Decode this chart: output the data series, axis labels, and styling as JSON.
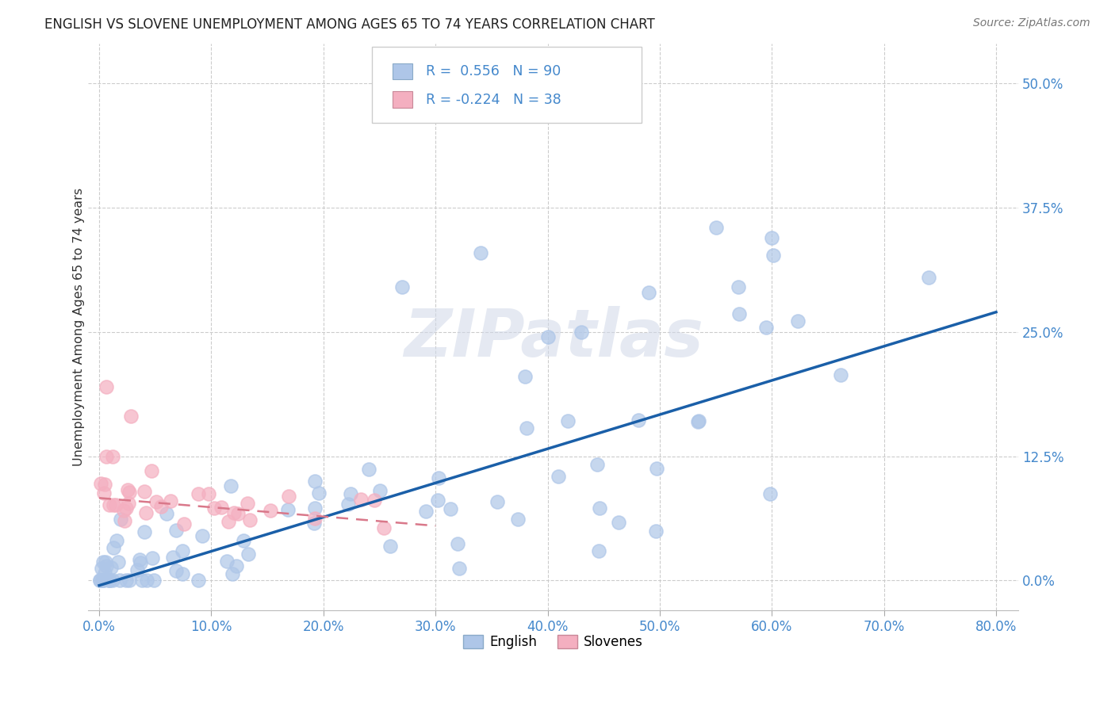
{
  "title": "ENGLISH VS SLOVENE UNEMPLOYMENT AMONG AGES 65 TO 74 YEARS CORRELATION CHART",
  "source": "Source: ZipAtlas.com",
  "xlabel_ticks": [
    "0.0%",
    "10.0%",
    "20.0%",
    "30.0%",
    "40.0%",
    "50.0%",
    "60.0%",
    "70.0%",
    "80.0%"
  ],
  "ylabel_ticks": [
    "0.0%",
    "12.5%",
    "25.0%",
    "37.5%",
    "50.0%"
  ],
  "xlabel_tick_vals": [
    0.0,
    0.1,
    0.2,
    0.3,
    0.4,
    0.5,
    0.6,
    0.7,
    0.8
  ],
  "ylabel_tick_vals": [
    0.0,
    0.125,
    0.25,
    0.375,
    0.5
  ],
  "xlim": [
    -0.01,
    0.82
  ],
  "ylim": [
    -0.03,
    0.54
  ],
  "legend_english": "English",
  "legend_slovene": "Slovenes",
  "R_english": 0.556,
  "N_english": 90,
  "R_slovene": -0.224,
  "N_slovene": 38,
  "english_color": "#aec6e8",
  "slovene_color": "#f4afc0",
  "english_line_color": "#1a5fa8",
  "slovene_line_color": "#d9788a",
  "title_color": "#222222",
  "axis_label_color": "#4488cc",
  "background_color": "#ffffff",
  "grid_color": "#cccccc",
  "watermark_text": "ZIPatlas",
  "ylabel": "Unemployment Among Ages 65 to 74 years",
  "eng_line_x0": 0.0,
  "eng_line_y0": -0.005,
  "eng_line_x1": 0.8,
  "eng_line_y1": 0.27,
  "slo_line_x0": 0.0,
  "slo_line_y0": 0.083,
  "slo_line_x1": 0.3,
  "slo_line_y1": 0.055
}
